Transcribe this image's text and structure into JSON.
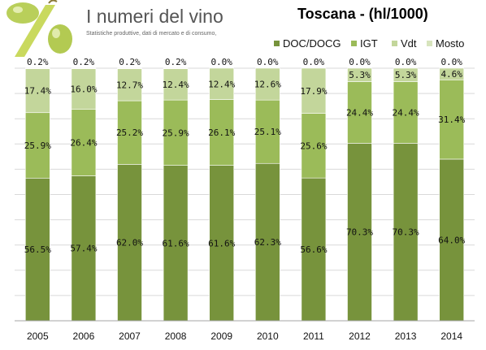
{
  "logo": {
    "title": "I numeri del vino",
    "subtitle": "Statistiche produttive, dati di mercato e di consumo,"
  },
  "chart_data": {
    "type": "bar",
    "stacked": true,
    "title": "Toscana - (hl/1000)",
    "xlabel": "",
    "ylabel": "",
    "ylim": [
      0,
      100
    ],
    "grid": true,
    "legend_position": "top-right",
    "categories": [
      "2005",
      "2006",
      "2007",
      "2008",
      "2009",
      "2010",
      "2011",
      "2012",
      "2013",
      "2014"
    ],
    "series": [
      {
        "name": "DOC/DOCG",
        "color": "#77933c",
        "values": [
          56.5,
          57.4,
          62.0,
          61.6,
          61.6,
          62.3,
          56.6,
          70.3,
          70.3,
          64.0
        ]
      },
      {
        "name": "IGT",
        "color": "#9bbb59",
        "values": [
          25.9,
          26.4,
          25.2,
          25.9,
          26.1,
          25.1,
          25.6,
          24.4,
          24.4,
          31.4
        ]
      },
      {
        "name": "Vdt",
        "color": "#c3d69b",
        "values": [
          17.4,
          16.0,
          12.7,
          12.4,
          12.4,
          12.6,
          17.9,
          5.3,
          5.3,
          4.6
        ]
      },
      {
        "name": "Mosto",
        "color": "#d7e4bd",
        "values": [
          0.2,
          0.2,
          0.2,
          0.2,
          0.0,
          0.0,
          0.0,
          0.0,
          0.0,
          0.0
        ]
      }
    ],
    "labels": [
      [
        "56.5%",
        "57.4%",
        "62.0%",
        "61.6%",
        "61.6%",
        "62.3%",
        "56.6%",
        "70.3%",
        "70.3%",
        "64.0%"
      ],
      [
        "25.9%",
        "26.4%",
        "25.2%",
        "25.9%",
        "26.1%",
        "25.1%",
        "25.6%",
        "24.4%",
        "24.4%",
        "31.4%"
      ],
      [
        "17.4%",
        "16.0%",
        "12.7%",
        "12.4%",
        "12.4%",
        "12.6%",
        "17.9%",
        "5.3%",
        "5.3%",
        "4.6%"
      ],
      [
        "0.2%",
        "0.2%",
        "0.2%",
        "0.2%",
        "0.0%",
        "0.0%",
        "0.0%",
        "0.0%",
        "0.0%",
        "0.0%"
      ]
    ]
  }
}
